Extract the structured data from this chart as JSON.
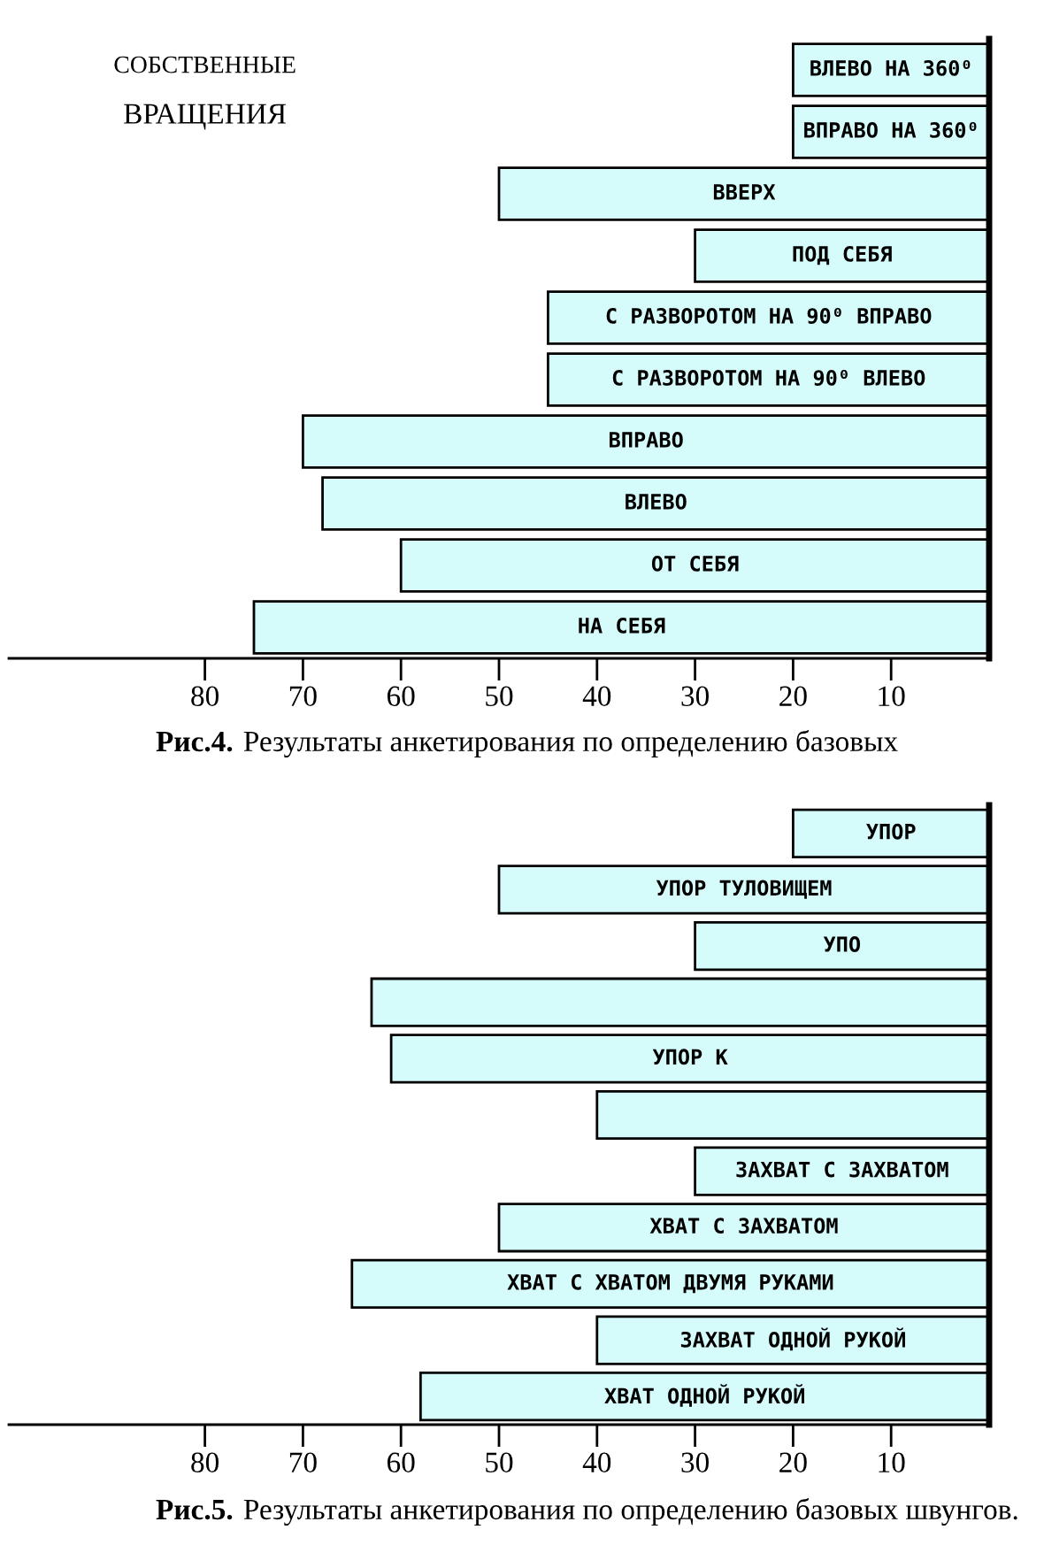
{
  "chart_data": [
    {
      "type": "bar",
      "orientation": "horizontal",
      "title": "СОБСТВЕННЫЕ ВРАЩЕНИЯ",
      "categories": [
        "ВЛЕВО НА 360⁰",
        "ВПРАВО НА 360⁰",
        "ВВЕРХ",
        "ПОД СЕБЯ",
        "С РАЗВОРОТОМ НА 90⁰ ВПРАВО",
        "С РАЗВОРОТОМ НА 90⁰ ВЛЕВО",
        "ВПРАВО",
        "ВЛЕВО",
        "ОТ СЕБЯ",
        "НА СЕБЯ"
      ],
      "values": [
        20,
        20,
        50,
        30,
        45,
        45,
        70,
        68,
        60,
        75
      ],
      "color": "#d5fbfb",
      "xlim": [
        100,
        0
      ],
      "xticks": [
        80,
        70,
        60,
        50,
        40,
        30,
        20,
        10
      ],
      "annotations": [
        "Рис.4. Результаты анкетирования по определению базовых"
      ]
    },
    {
      "type": "bar",
      "orientation": "horizontal",
      "categories": [
        "УПОР",
        "УПОР ТУЛОВИЩЕМ",
        "УПО",
        null,
        "УПОР К",
        null,
        "ЗАХВАТ С ЗАХВАТОМ",
        "ХВАТ С ЗАХВАТОМ",
        "ХВАТ С ХВАТОМ ДВУМЯ РУКАМИ",
        "ЗАХВАТ ОДНОЙ РУКОЙ",
        "ХВАТ ОДНОЙ РУКОЙ"
      ],
      "values": [
        20,
        50,
        30,
        63,
        61,
        40,
        30,
        50,
        65,
        40,
        58
      ],
      "color": "#d5fbfb",
      "xlim": [
        100,
        0
      ],
      "xticks": [
        80,
        70,
        60,
        50,
        40,
        30,
        20,
        10
      ],
      "annotations": [
        "Рис.5. Результаты анкетирования по определению базовых швунгов."
      ]
    }
  ]
}
